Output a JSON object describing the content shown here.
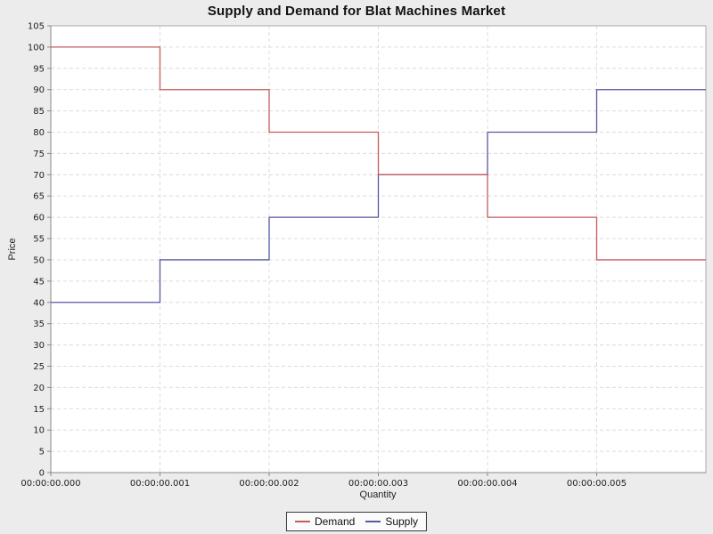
{
  "chart_data": {
    "type": "line",
    "subtype": "step",
    "title": "Supply and Demand for Blat Machines Market",
    "xlabel": "Quantity",
    "ylabel": "Price",
    "ylim": [
      0,
      105
    ],
    "y_tick_step": 5,
    "xlim_ms": [
      0,
      6
    ],
    "x_edges_ms": [
      0,
      1,
      2,
      3,
      4,
      5,
      6
    ],
    "x_ticks_ms": [
      0,
      1,
      2,
      3,
      4,
      5
    ],
    "x_tick_labels": [
      "00:00:00.000",
      "00:00:00.001",
      "00:00:00.002",
      "00:00:00.003",
      "00:00:00.004",
      "00:00:00.005"
    ],
    "grid": "dashed",
    "legend_position": "bottom",
    "series": [
      {
        "name": "Demand",
        "color": "#c45c5c",
        "step_values": [
          100,
          90,
          80,
          70,
          60,
          50
        ]
      },
      {
        "name": "Supply",
        "color": "#5757a2",
        "step_values": [
          40,
          50,
          60,
          70,
          80,
          90
        ]
      }
    ]
  },
  "colors": {
    "background": "#ececec",
    "plot_background": "#ffffff",
    "gridline": "#dcdcdc",
    "plot_outline": "#aaaaaa",
    "axis_line": "#888888",
    "tick_text": "#222222"
  }
}
